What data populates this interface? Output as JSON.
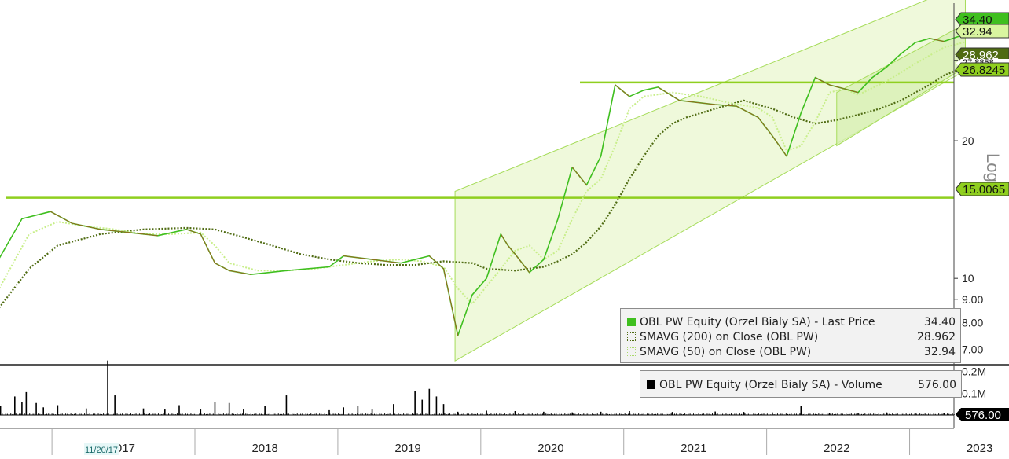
{
  "chart_data": [
    {
      "type": "line",
      "scale": "log",
      "scale_label": "Log",
      "ylim": [
        6.5,
        40
      ],
      "yticks": [
        {
          "value": 7,
          "label": "7.00"
        },
        {
          "value": 8,
          "label": "8.00"
        },
        {
          "value": 9,
          "label": "9.00"
        },
        {
          "value": 10,
          "label": "10"
        },
        {
          "value": 20,
          "label": "20"
        },
        {
          "value": 30,
          "label": "30"
        }
      ],
      "price_tags": [
        {
          "label": "34.40",
          "value": 34.4,
          "color": "#3fbf1f"
        },
        {
          "label": "32.94",
          "value": 32.94,
          "color": "#d9f5a0"
        },
        {
          "label": "28.962",
          "value": 28.962,
          "color": "#4f6b12"
        },
        {
          "label": "27.8858",
          "value": 27.8858,
          "color": "#ffffff"
        },
        {
          "label": "26.8245",
          "value": 26.8245,
          "color": "#8fcf1f"
        },
        {
          "label": "15.0065",
          "value": 15.0065,
          "color": "#8fcf1f"
        }
      ],
      "horizontal_levels": [
        15.0065,
        26.8245
      ],
      "legend": [
        {
          "label": "OBL PW Equity (Orzel Bialy SA) - Last Price",
          "value": "34.40",
          "swatch": "#3fbf1f"
        },
        {
          "label": "SMAVG (200)  on Close (OBL PW)",
          "value": "28.962",
          "swatch": "#4f6b12"
        },
        {
          "label": "SMAVG (50)  on Close (OBL PW)",
          "value": "32.94",
          "swatch": "#c8ee8a"
        }
      ],
      "series": [
        {
          "name": "OBL PW Equity (Orzel Bialy SA) - Last Price",
          "color": "#3fbf1f",
          "x": [
            2016.55,
            2016.75,
            2016.95,
            2017.1,
            2017.3,
            2017.5,
            2017.7,
            2017.9,
            2018.0,
            2018.1,
            2018.2,
            2018.35,
            2018.6,
            2018.9,
            2019.0,
            2019.2,
            2019.4,
            2019.6,
            2019.7,
            2019.8,
            2019.9,
            2020.0,
            2020.1,
            2020.15,
            2020.2,
            2020.3,
            2020.4,
            2020.5,
            2020.6,
            2020.7,
            2020.8,
            2020.9,
            2021.0,
            2021.1,
            2021.2,
            2021.35,
            2021.5,
            2021.6,
            2021.75,
            2021.9,
            2022.0,
            2022.1,
            2022.2,
            2022.3,
            2022.4,
            2022.5,
            2022.6,
            2022.7,
            2022.8,
            2022.9,
            2023.0,
            2023.1,
            2023.2,
            2023.3,
            2023.35
          ],
          "y": [
            10.5,
            13.5,
            14.0,
            13.2,
            12.8,
            12.6,
            12.4,
            12.8,
            12.5,
            10.8,
            10.4,
            10.2,
            10.4,
            10.6,
            11.2,
            11.0,
            10.8,
            11.2,
            10.5,
            7.5,
            9.2,
            10.0,
            12.5,
            11.8,
            11.3,
            10.3,
            11.0,
            13.5,
            17.5,
            16.0,
            18.5,
            26.5,
            25.0,
            25.8,
            26.2,
            24.5,
            24.2,
            24.0,
            23.8,
            22.5,
            20.5,
            18.5,
            23.0,
            27.5,
            26.5,
            26.0,
            25.5,
            27.5,
            29.0,
            31.0,
            32.8,
            33.5,
            33.0,
            33.8,
            34.4
          ]
        },
        {
          "name": "SMAVG (50)  on Close (OBL PW)",
          "color": "#c8ee8a",
          "x": [
            2016.55,
            2016.8,
            2017.0,
            2017.2,
            2017.4,
            2017.6,
            2017.8,
            2018.0,
            2018.1,
            2018.2,
            2018.4,
            2018.6,
            2018.8,
            2019.0,
            2019.2,
            2019.4,
            2019.55,
            2019.7,
            2019.8,
            2019.9,
            2020.0,
            2020.1,
            2020.2,
            2020.3,
            2020.4,
            2020.5,
            2020.6,
            2020.7,
            2020.8,
            2020.9,
            2021.0,
            2021.1,
            2021.3,
            2021.5,
            2021.7,
            2021.9,
            2022.0,
            2022.1,
            2022.2,
            2022.3,
            2022.4,
            2022.5,
            2022.6,
            2022.8,
            2023.0,
            2023.2,
            2023.35
          ],
          "y": [
            9.0,
            12.5,
            13.3,
            13.0,
            12.8,
            12.5,
            12.5,
            12.6,
            11.8,
            10.8,
            10.4,
            10.4,
            10.5,
            10.7,
            10.9,
            11.0,
            10.9,
            10.6,
            9.5,
            8.8,
            9.6,
            10.5,
            11.5,
            11.8,
            11.0,
            11.5,
            13.5,
            15.5,
            16.5,
            19.5,
            23.5,
            25.0,
            25.5,
            25.0,
            24.2,
            23.6,
            22.5,
            19.0,
            19.5,
            22.0,
            25.5,
            26.0,
            25.2,
            27.0,
            29.5,
            32.0,
            32.9
          ]
        },
        {
          "name": "SMAVG (200)  on Close (OBL PW)",
          "color": "#4f6b12",
          "x": [
            2016.55,
            2016.8,
            2017.0,
            2017.3,
            2017.6,
            2017.9,
            2018.1,
            2018.3,
            2018.5,
            2018.7,
            2018.9,
            2019.1,
            2019.3,
            2019.5,
            2019.7,
            2019.9,
            2020.0,
            2020.2,
            2020.4,
            2020.5,
            2020.6,
            2020.7,
            2020.8,
            2020.9,
            2021.0,
            2021.1,
            2021.2,
            2021.3,
            2021.4,
            2021.5,
            2021.6,
            2021.8,
            2022.0,
            2022.15,
            2022.3,
            2022.45,
            2022.6,
            2022.75,
            2022.9,
            2023.0,
            2023.1,
            2023.2,
            2023.35
          ],
          "y": [
            8.3,
            10.5,
            11.8,
            12.5,
            12.8,
            12.9,
            12.8,
            12.3,
            11.8,
            11.3,
            11.0,
            10.8,
            10.7,
            10.7,
            10.9,
            10.8,
            10.5,
            10.4,
            10.6,
            10.9,
            11.3,
            12.0,
            13.0,
            14.5,
            16.5,
            18.5,
            20.5,
            21.8,
            22.5,
            23.0,
            23.5,
            24.5,
            23.5,
            22.5,
            21.8,
            22.2,
            22.8,
            23.5,
            24.5,
            25.5,
            26.5,
            27.8,
            29.0
          ]
        }
      ]
    },
    {
      "type": "bar",
      "yticks": [
        {
          "value": 100000,
          "label": "0.1M"
        },
        {
          "value": 200000,
          "label": "0.2M"
        }
      ],
      "last_tag": {
        "label": "576.00",
        "value": 576
      },
      "legend": [
        {
          "label": "OBL PW Equity (Orzel Bialy SA) - Volume",
          "value": "576.00",
          "swatch": "#000000"
        }
      ],
      "series": [
        {
          "name": "OBL PW Equity (Orzel Bialy SA) - Volume",
          "x": [
            2016.6,
            2016.7,
            2016.75,
            2016.78,
            2016.85,
            2016.9,
            2017.0,
            2017.2,
            2017.35,
            2017.4,
            2017.6,
            2017.75,
            2017.85,
            2018.0,
            2018.1,
            2018.2,
            2018.3,
            2018.45,
            2018.6,
            2018.9,
            2019.0,
            2019.1,
            2019.2,
            2019.35,
            2019.5,
            2019.55,
            2019.6,
            2019.65,
            2019.7,
            2019.8,
            2020.0,
            2020.2,
            2020.4,
            2020.6,
            2020.8,
            2021.0,
            2021.3,
            2021.6,
            2021.8,
            2022.0,
            2022.2,
            2022.4,
            2022.6,
            2022.8,
            2023.0,
            2023.2
          ],
          "y": [
            40000,
            85000,
            60000,
            105000,
            55000,
            35000,
            45000,
            30000,
            250000,
            90000,
            30000,
            25000,
            45000,
            25000,
            60000,
            55000,
            25000,
            40000,
            90000,
            22000,
            35000,
            40000,
            25000,
            50000,
            110000,
            70000,
            120000,
            85000,
            50000,
            15000,
            20000,
            18000,
            15000,
            12000,
            15000,
            18000,
            14000,
            16000,
            14000,
            12000,
            40000,
            10000,
            8000,
            12000,
            10000,
            9000
          ]
        }
      ]
    }
  ],
  "x_axis": {
    "labels": [
      "2017",
      "2018",
      "2019",
      "2020",
      "2021",
      "2022",
      "2023"
    ],
    "marker_label": "11/20/17"
  }
}
